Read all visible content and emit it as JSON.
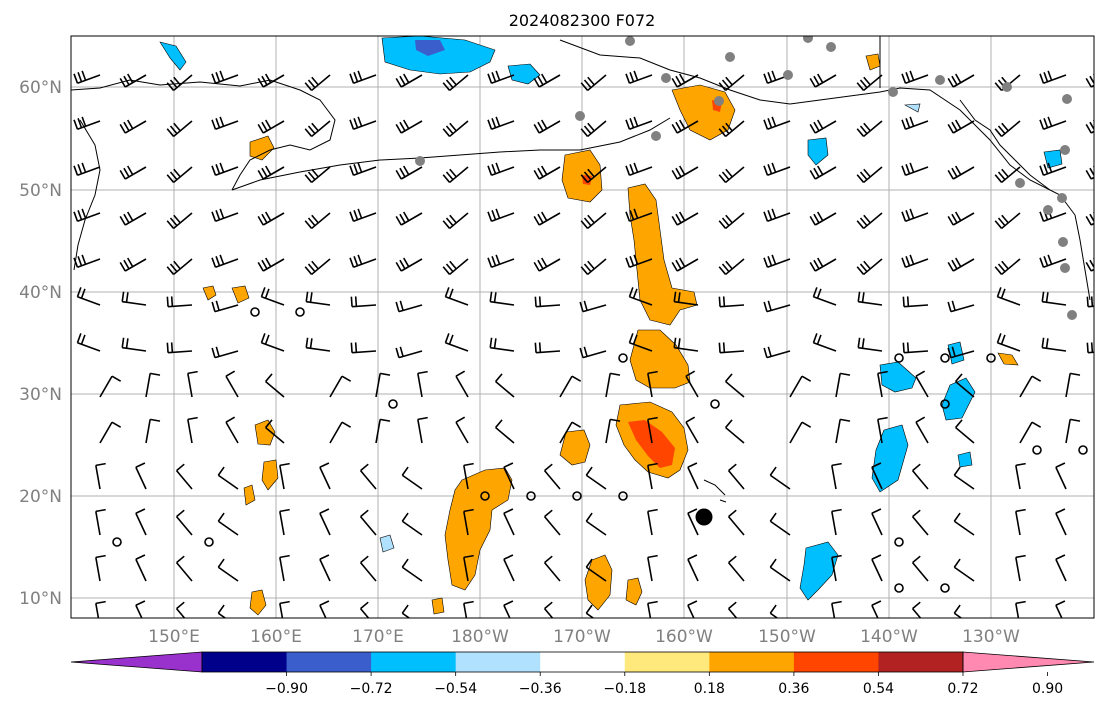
{
  "title": "2024082300 F072",
  "axes": {
    "lon_ticks": [
      "150°E",
      "160°E",
      "170°E",
      "180°W",
      "170°W",
      "160°W",
      "150°W",
      "140°W",
      "130°W"
    ],
    "lat_ticks": [
      "60°N",
      "50°N",
      "40°N",
      "30°N",
      "20°N",
      "10°N"
    ],
    "grid": true,
    "lon_range": [
      "140°E",
      "120°W"
    ],
    "lat_range": [
      "8°N",
      "65°N"
    ]
  },
  "colorbar": {
    "orientation": "horizontal",
    "placement": "bottom",
    "extend": "both",
    "tick_labels": [
      "−0.90",
      "−0.72",
      "−0.54",
      "−0.36",
      "−0.18",
      "0.18",
      "0.36",
      "0.54",
      "0.72",
      "0.90"
    ],
    "colors": [
      "#9932cc",
      "#00008b",
      "#3a5fcd",
      "#00bfff",
      "#b0e2ff",
      "#ffffff",
      "#ffe87c",
      "#ffa500",
      "#ff4500",
      "#b22222",
      "#ff89b0"
    ]
  },
  "field": {
    "positive_color": "#ffa500",
    "positive_strong_color": "#ff4500",
    "negative_color": "#00bfff",
    "negative_weak_color": "#b0e2ff",
    "coast_color": "#000000",
    "wind_barb_color": "#000000",
    "station_marker_color": "#808080",
    "point_marker_color": "#000000"
  }
}
